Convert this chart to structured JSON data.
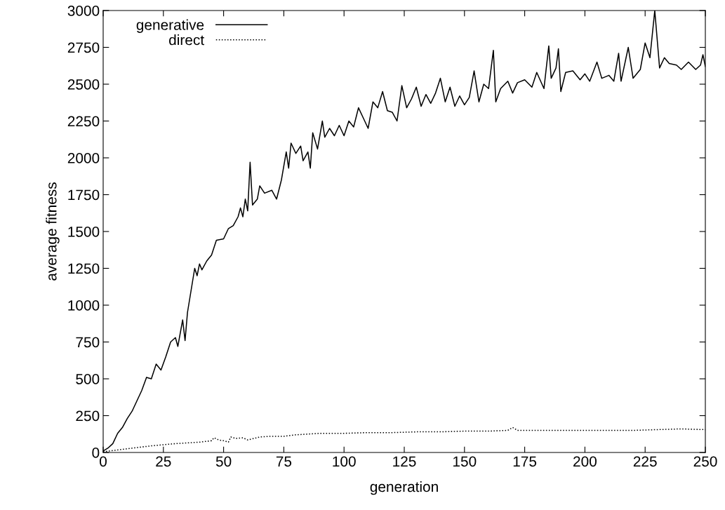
{
  "chart_data": {
    "type": "line",
    "xlabel": "generation",
    "ylabel": "average fitness",
    "xlim": [
      0,
      250
    ],
    "xticks": [
      0,
      25,
      50,
      75,
      100,
      125,
      150,
      175,
      200,
      225,
      250
    ],
    "ylim": [
      0,
      3000
    ],
    "yticks": [
      0,
      250,
      500,
      750,
      1000,
      1250,
      1500,
      1750,
      2000,
      2250,
      2500,
      2750,
      3000
    ],
    "grid": false,
    "legend": "top left",
    "marker": "none",
    "series": [
      {
        "name": "generative",
        "color": "#000000",
        "line_style": "solid",
        "x": [
          0,
          2,
          4,
          6,
          8,
          10,
          12,
          14,
          16,
          18,
          20,
          22,
          24,
          26,
          28,
          30,
          31,
          33,
          34,
          35,
          37,
          38,
          39,
          40,
          41,
          43,
          45,
          47,
          50,
          52,
          54,
          56,
          57,
          58,
          59,
          60,
          61,
          62,
          64,
          65,
          67,
          70,
          72,
          74,
          76,
          77,
          78,
          80,
          82,
          83,
          85,
          86,
          87,
          89,
          91,
          92,
          94,
          96,
          98,
          100,
          102,
          104,
          106,
          108,
          110,
          112,
          114,
          116,
          118,
          120,
          122,
          124,
          126,
          128,
          130,
          132,
          134,
          136,
          138,
          140,
          142,
          144,
          146,
          148,
          150,
          152,
          154,
          156,
          158,
          160,
          162,
          163,
          165,
          168,
          170,
          172,
          175,
          178,
          180,
          183,
          185,
          186,
          188,
          189,
          190,
          192,
          195,
          198,
          200,
          202,
          205,
          207,
          210,
          212,
          214,
          215,
          218,
          220,
          223,
          225,
          227,
          229,
          231,
          233,
          235,
          238,
          240,
          243,
          246,
          248,
          249,
          250
        ],
        "values": [
          10,
          30,
          60,
          130,
          170,
          230,
          280,
          350,
          420,
          510,
          500,
          600,
          560,
          650,
          750,
          780,
          720,
          900,
          760,
          950,
          1150,
          1250,
          1200,
          1280,
          1240,
          1300,
          1340,
          1440,
          1450,
          1520,
          1540,
          1600,
          1660,
          1600,
          1720,
          1640,
          1970,
          1680,
          1720,
          1810,
          1760,
          1780,
          1720,
          1850,
          2040,
          1930,
          2100,
          2030,
          2080,
          1980,
          2040,
          1930,
          2170,
          2060,
          2250,
          2140,
          2200,
          2150,
          2220,
          2150,
          2250,
          2210,
          2340,
          2270,
          2200,
          2380,
          2340,
          2450,
          2320,
          2310,
          2250,
          2490,
          2340,
          2400,
          2480,
          2350,
          2430,
          2370,
          2440,
          2540,
          2380,
          2480,
          2350,
          2420,
          2360,
          2410,
          2590,
          2380,
          2500,
          2470,
          2730,
          2380,
          2470,
          2520,
          2440,
          2510,
          2530,
          2480,
          2580,
          2470,
          2760,
          2540,
          2610,
          2740,
          2450,
          2580,
          2590,
          2530,
          2570,
          2520,
          2650,
          2540,
          2560,
          2520,
          2710,
          2520,
          2750,
          2540,
          2600,
          2780,
          2680,
          3000,
          2610,
          2680,
          2640,
          2630,
          2600,
          2650,
          2600,
          2630,
          2700,
          2620
        ]
      },
      {
        "name": "direct",
        "color": "#000000",
        "line_style": "dotted",
        "x": [
          0,
          10,
          20,
          30,
          40,
          45,
          46,
          48,
          50,
          52,
          53,
          55,
          58,
          60,
          65,
          70,
          75,
          80,
          85,
          90,
          100,
          110,
          120,
          130,
          140,
          150,
          160,
          168,
          170,
          172,
          180,
          190,
          200,
          210,
          220,
          230,
          240,
          250
        ],
        "values": [
          5,
          25,
          45,
          60,
          70,
          80,
          100,
          85,
          80,
          70,
          105,
          95,
          100,
          85,
          105,
          110,
          110,
          120,
          125,
          130,
          130,
          135,
          135,
          140,
          140,
          145,
          145,
          150,
          170,
          150,
          150,
          150,
          150,
          150,
          150,
          155,
          160,
          155
        ]
      }
    ]
  }
}
